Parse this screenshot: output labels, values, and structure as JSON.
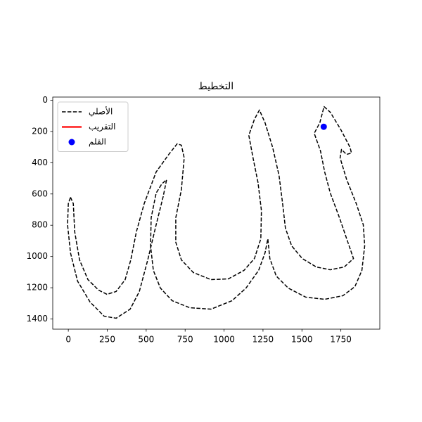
{
  "chart_data": {
    "type": "line",
    "title": "التخطيط",
    "xlim": [
      -100,
      2000
    ],
    "ylim": [
      -20,
      1465
    ],
    "y_inverted": true,
    "xticks": [
      0,
      250,
      500,
      750,
      1000,
      1250,
      1500,
      1750
    ],
    "yticks": [
      0,
      200,
      400,
      600,
      800,
      1000,
      1200,
      1400
    ],
    "legend": "upper left",
    "series": [
      {
        "name": "الأصلي",
        "color": "#000000",
        "style": "dashed",
        "x": [
          14,
          32,
          41,
          72,
          126,
          194,
          248,
          307,
          365,
          401,
          437,
          487,
          564,
          645,
          699,
          726,
          744,
          726,
          690,
          690,
          726,
          803,
          916,
          1028,
          1128,
          1195,
          1236,
          1240,
          1218,
          1186,
          1159,
          1195,
          1227,
          1263,
          1312,
          1353,
          1376,
          1394,
          1434,
          1502,
          1592,
          1682,
          1772,
          1831,
          1795,
          1741,
          1682,
          1646,
          1619,
          1579,
          1615,
          1642,
          1682,
          1750,
          1809,
          1818,
          1786,
          1754,
          1745,
          1786,
          1849,
          1894,
          1903,
          1885,
          1840,
          1763,
          1646,
          1524,
          1412,
          1335,
          1294,
          1281,
          1263,
          1222,
          1141,
          1051,
          916,
          780,
          667,
          591,
          546,
          528,
          532,
          564,
          600,
          631,
          609,
          564,
          510,
          456,
          397,
          307,
          230,
          140,
          59,
          14,
          -5,
          0,
          14
        ],
        "values": [
          621,
          662,
          842,
          1022,
          1148,
          1215,
          1242,
          1224,
          1148,
          1022,
          842,
          662,
          459,
          347,
          279,
          288,
          369,
          572,
          752,
          909,
          1022,
          1103,
          1148,
          1143,
          1089,
          1013,
          887,
          707,
          527,
          369,
          225,
          122,
          63,
          144,
          302,
          482,
          662,
          819,
          932,
          1013,
          1067,
          1085,
          1067,
          1013,
          909,
          752,
          594,
          459,
          324,
          212,
          144,
          41,
          77,
          189,
          302,
          338,
          347,
          315,
          369,
          504,
          662,
          797,
          932,
          1089,
          1193,
          1251,
          1274,
          1260,
          1202,
          1125,
          1013,
          887,
          977,
          1089,
          1202,
          1283,
          1337,
          1328,
          1283,
          1202,
          1089,
          932,
          752,
          594,
          536,
          509,
          617,
          797,
          1022,
          1224,
          1337,
          1395,
          1382,
          1292,
          1157,
          977,
          797,
          662,
          621
        ]
      },
      {
        "name": "التقريب",
        "color": "#ff0000",
        "style": "solid",
        "x": [],
        "values": []
      },
      {
        "name": "القلم",
        "color": "#0000ff",
        "style": "marker",
        "x": [
          1640
        ],
        "values": [
          170
        ]
      }
    ]
  }
}
